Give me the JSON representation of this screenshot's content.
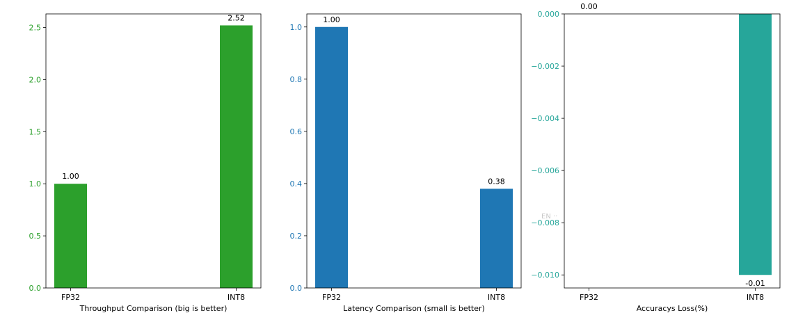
{
  "chart_data": [
    {
      "type": "bar",
      "categories": [
        "FP32",
        "INT8"
      ],
      "values": [
        1.0,
        2.52
      ],
      "value_labels": [
        "1.00",
        "2.52"
      ],
      "xlabel": "Throughput Comparison (big is better)",
      "ylabel": "",
      "ylim": [
        0,
        2.63
      ],
      "yticks": [
        0.0,
        0.5,
        1.0,
        1.5,
        2.0,
        2.5
      ],
      "ytick_labels": [
        "0.0",
        "0.5",
        "1.0",
        "1.5",
        "2.0",
        "2.5"
      ],
      "bar_color": "#2ca02c",
      "tick_color": "#2ca02c",
      "grid": false
    },
    {
      "type": "bar",
      "categories": [
        "FP32",
        "INT8"
      ],
      "values": [
        1.0,
        0.38
      ],
      "value_labels": [
        "1.00",
        "0.38"
      ],
      "xlabel": "Latency Comparison (small is better)",
      "ylabel": "",
      "ylim": [
        0,
        1.05
      ],
      "yticks": [
        0.0,
        0.2,
        0.4,
        0.6,
        0.8,
        1.0
      ],
      "ytick_labels": [
        "0.0",
        "0.2",
        "0.4",
        "0.6",
        "0.8",
        "1.0"
      ],
      "bar_color": "#1f77b4",
      "tick_color": "#1f77b4",
      "grid": false
    },
    {
      "type": "bar",
      "categories": [
        "FP32",
        "INT8"
      ],
      "values": [
        0.0,
        -0.01
      ],
      "value_labels": [
        "0.00",
        "-0.01"
      ],
      "xlabel": "Accuracys Loss(%)",
      "ylabel": "",
      "ylim": [
        -0.0105,
        0.0
      ],
      "yticks": [
        0.0,
        -0.002,
        -0.004,
        -0.006,
        -0.008,
        -0.01
      ],
      "ytick_labels": [
        "0.000",
        "−0.002",
        "−0.004",
        "−0.006",
        "−0.008",
        "−0.010"
      ],
      "bar_color": "#26a69a",
      "tick_color": "#26a69a",
      "grid": false
    }
  ],
  "watermark": "EN ··"
}
